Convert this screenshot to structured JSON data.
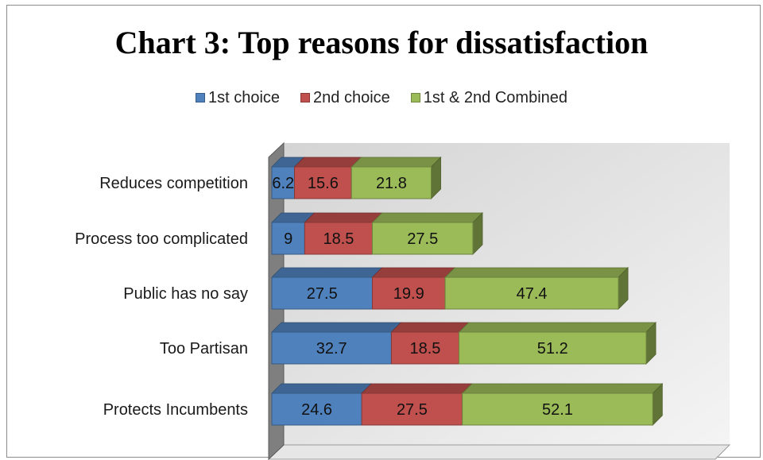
{
  "chart_data": {
    "type": "bar",
    "orientation": "horizontal",
    "stacked": true,
    "three_d": true,
    "title": "Chart 3: Top reasons for dissatisfaction",
    "categories": [
      "Reduces competition",
      "Process too complicated",
      "Public has no say",
      "Too Partisan",
      "Protects Incumbents"
    ],
    "series": [
      {
        "name": "1st choice",
        "color": "#4f81bd",
        "values": [
          6.2,
          9,
          27.5,
          32.7,
          24.6
        ],
        "labels": [
          "6.2",
          "9",
          "27.5",
          "32.7",
          "24.6"
        ]
      },
      {
        "name": "2nd choice",
        "color": "#c0504d",
        "values": [
          15.6,
          18.5,
          19.9,
          18.5,
          27.5
        ],
        "labels": [
          "15.6",
          "18.5",
          "19.9",
          "18.5",
          "27.5"
        ]
      },
      {
        "name": "1st & 2nd Combined",
        "color": "#9bbb59",
        "values": [
          21.8,
          27.5,
          47.4,
          51.2,
          52.1
        ],
        "labels": [
          "21.8",
          "27.5",
          "47.4",
          "51.2",
          "52.1"
        ]
      }
    ],
    "legend_position": "top",
    "xaxis_visible": false,
    "grid": false
  }
}
